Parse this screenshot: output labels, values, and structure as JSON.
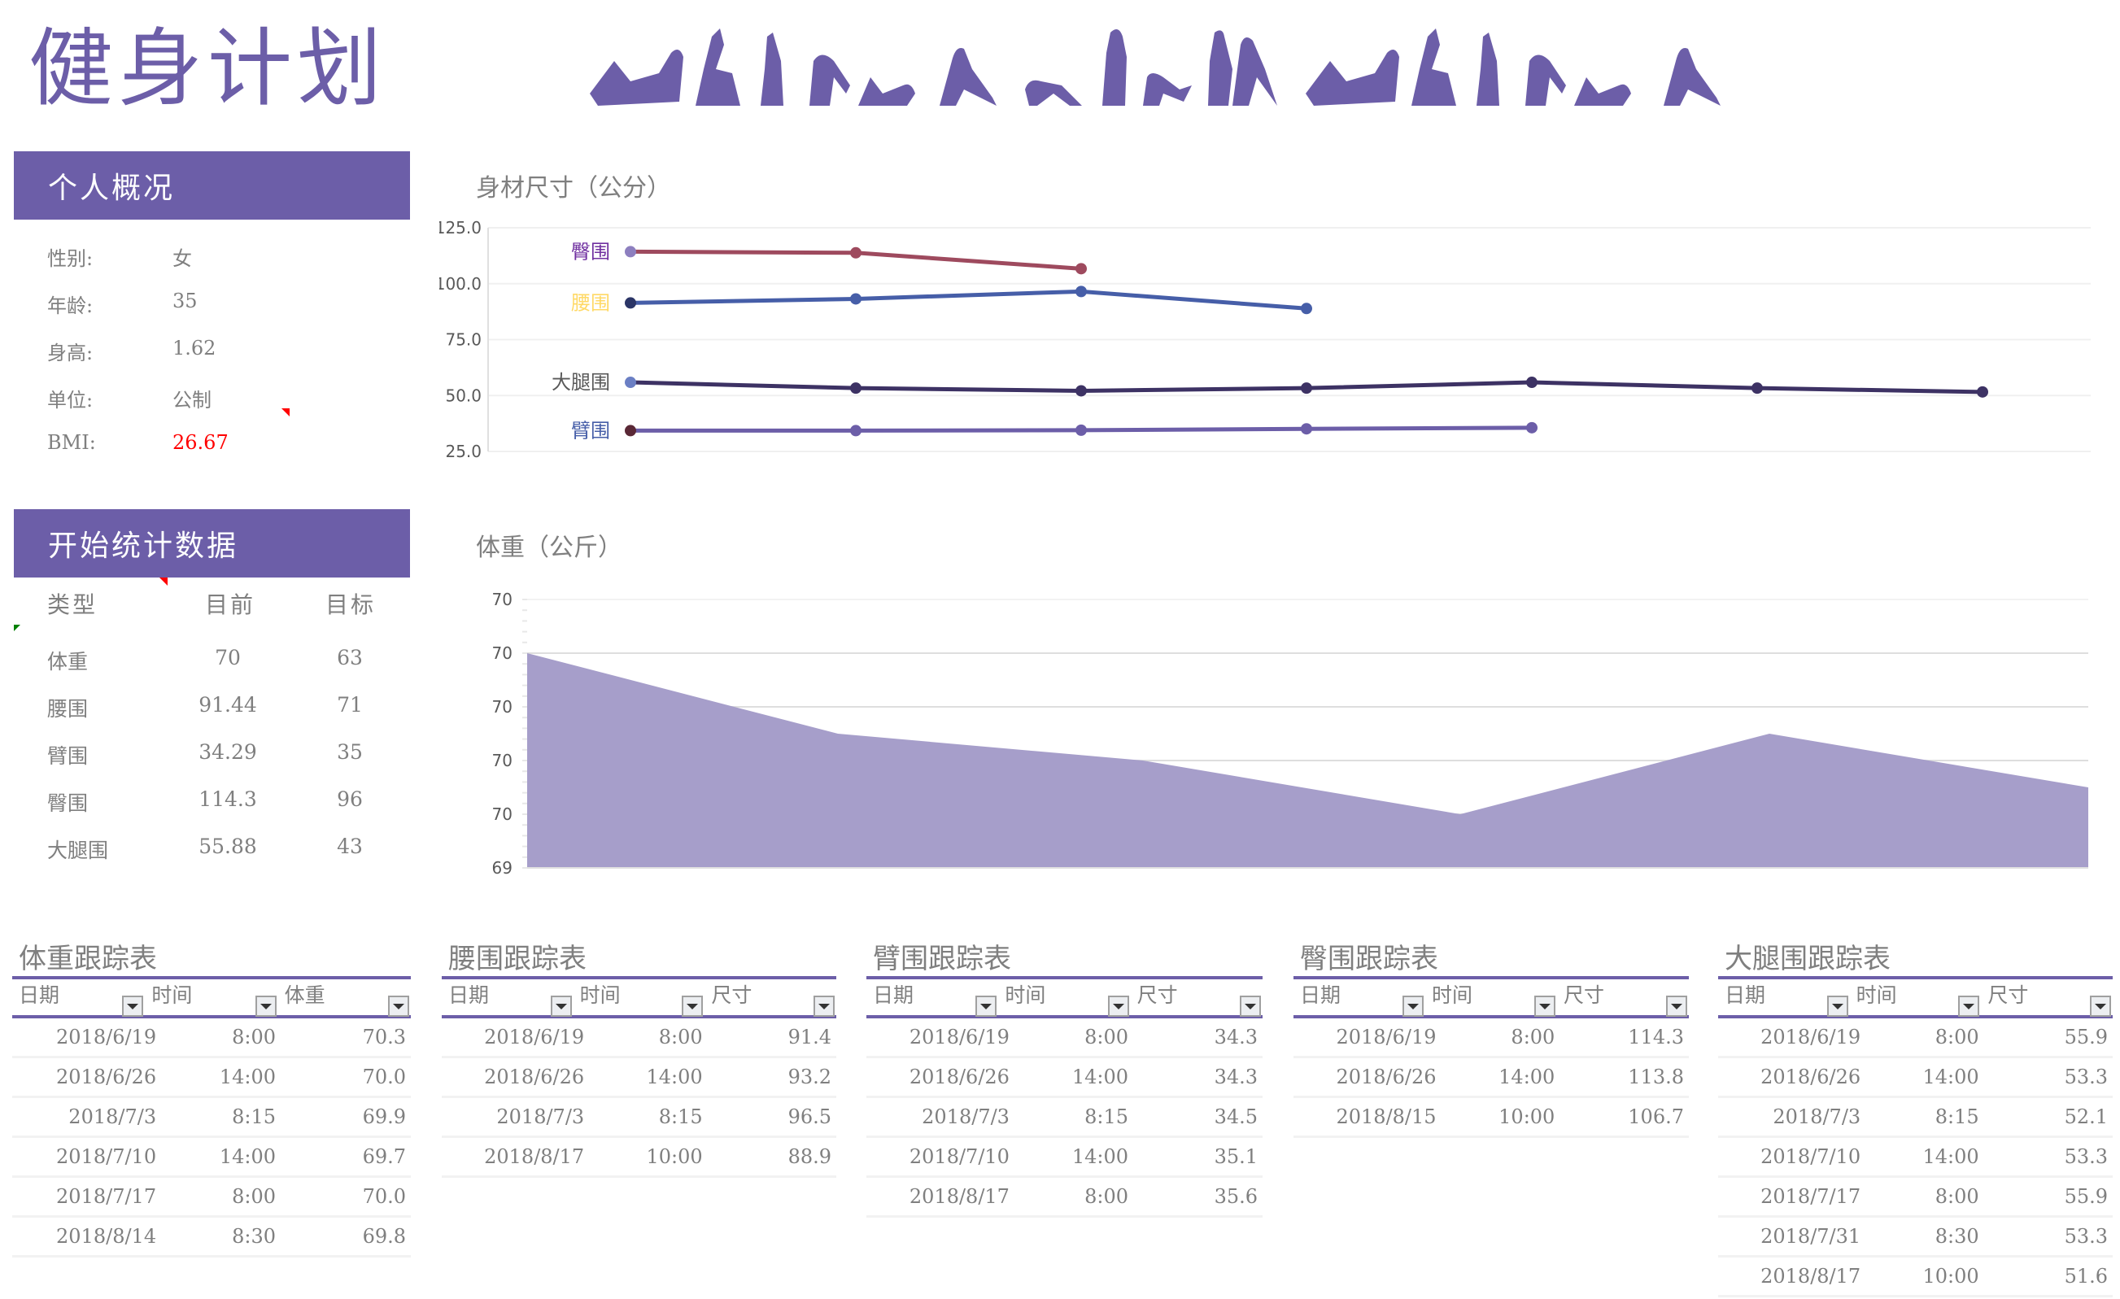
{
  "header": {
    "title": "健身计划",
    "banner_icon": "exercise-silhouettes-banner"
  },
  "profile": {
    "section_title": "个人概况",
    "rows": [
      {
        "label": "性别:",
        "value": "女"
      },
      {
        "label": "年龄:",
        "value": "35"
      },
      {
        "label": "身高:",
        "value": "1.62"
      },
      {
        "label": "单位:",
        "value": "公制"
      },
      {
        "label": "BMI:",
        "value": "26.67"
      }
    ],
    "bmi_color": "#ff0000"
  },
  "stats": {
    "section_title": "开始统计数据",
    "columns": [
      "类型",
      "目前",
      "目标"
    ],
    "rows": [
      {
        "type": "体重",
        "current": "70",
        "target": "63"
      },
      {
        "type": "腰围",
        "current": "91.44",
        "target": "71"
      },
      {
        "type": "臂围",
        "current": "34.29",
        "target": "35"
      },
      {
        "type": "臀围",
        "current": "114.3",
        "target": "96"
      },
      {
        "type": "大腿围",
        "current": "55.88",
        "target": "43"
      }
    ]
  },
  "colors": {
    "accent": "#6c5ea8",
    "area_fill": "#a69eca",
    "hip_line": "#9e4a5e",
    "waist_line": "#465ea8",
    "thigh_line": "#3d3264",
    "arm_line": "#6c5ea8"
  },
  "chart_data": [
    {
      "type": "line",
      "title": "身材尺寸（公分）",
      "ylim": [
        25,
        125
      ],
      "yticks": [
        "125.0",
        "100.0",
        "75.0",
        "50.0",
        "25.0"
      ],
      "grid": true,
      "legend_position": "inline-left",
      "x": [
        1,
        2,
        3,
        4,
        5,
        6,
        7
      ],
      "series": [
        {
          "name": "臀围",
          "label_color": "#7030a0",
          "color": "#9e4a5e",
          "values": [
            114.3,
            113.8,
            106.7
          ]
        },
        {
          "name": "腰围",
          "label_color": "#ffd966",
          "color": "#465ea8",
          "values": [
            91.4,
            93.2,
            96.5,
            88.9
          ]
        },
        {
          "name": "大腿围",
          "label_color": "#595959",
          "color": "#3d3264",
          "values": [
            55.9,
            53.3,
            52.1,
            53.3,
            55.9,
            53.3,
            51.6
          ]
        },
        {
          "name": "臂围",
          "label_color": "#465ea8",
          "color": "#6c5ea8",
          "values": [
            34.3,
            34.3,
            34.5,
            35.1,
            35.6
          ]
        }
      ]
    },
    {
      "type": "area",
      "title": "体重（公斤）",
      "yticks": [
        "70",
        "70",
        "70",
        "70",
        "70",
        "69"
      ],
      "ylim": [
        69.5,
        70.5
      ],
      "grid": true,
      "x": [
        1,
        2,
        3,
        4,
        5,
        6
      ],
      "series": [
        {
          "name": "体重",
          "color": "#a69eca",
          "values": [
            70.3,
            70.0,
            69.9,
            69.7,
            70.0,
            69.8
          ]
        }
      ]
    }
  ],
  "trackers": [
    {
      "title": "体重跟踪表",
      "columns": [
        "日期",
        "时间",
        "体重"
      ],
      "rows": [
        [
          "2018/6/19",
          "8:00",
          "70.3"
        ],
        [
          "2018/6/26",
          "14:00",
          "70.0"
        ],
        [
          "2018/7/3",
          "8:15",
          "69.9"
        ],
        [
          "2018/7/10",
          "14:00",
          "69.7"
        ],
        [
          "2018/7/17",
          "8:00",
          "70.0"
        ],
        [
          "2018/8/14",
          "8:30",
          "69.8"
        ]
      ]
    },
    {
      "title": "腰围跟踪表",
      "columns": [
        "日期",
        "时间",
        "尺寸"
      ],
      "rows": [
        [
          "2018/6/19",
          "8:00",
          "91.4"
        ],
        [
          "2018/6/26",
          "14:00",
          "93.2"
        ],
        [
          "2018/7/3",
          "8:15",
          "96.5"
        ],
        [
          "2018/8/17",
          "10:00",
          "88.9"
        ]
      ]
    },
    {
      "title": "臂围跟踪表",
      "columns": [
        "日期",
        "时间",
        "尺寸"
      ],
      "rows": [
        [
          "2018/6/19",
          "8:00",
          "34.3"
        ],
        [
          "2018/6/26",
          "14:00",
          "34.3"
        ],
        [
          "2018/7/3",
          "8:15",
          "34.5"
        ],
        [
          "2018/7/10",
          "14:00",
          "35.1"
        ],
        [
          "2018/8/17",
          "8:00",
          "35.6"
        ]
      ]
    },
    {
      "title": "臀围跟踪表",
      "columns": [
        "日期",
        "时间",
        "尺寸"
      ],
      "rows": [
        [
          "2018/6/19",
          "8:00",
          "114.3"
        ],
        [
          "2018/6/26",
          "14:00",
          "113.8"
        ],
        [
          "2018/8/15",
          "10:00",
          "106.7"
        ]
      ]
    },
    {
      "title": "大腿围跟踪表",
      "columns": [
        "日期",
        "时间",
        "尺寸"
      ],
      "rows": [
        [
          "2018/6/19",
          "8:00",
          "55.9"
        ],
        [
          "2018/6/26",
          "14:00",
          "53.3"
        ],
        [
          "2018/7/3",
          "8:15",
          "52.1"
        ],
        [
          "2018/7/10",
          "14:00",
          "53.3"
        ],
        [
          "2018/7/17",
          "8:00",
          "55.9"
        ],
        [
          "2018/7/31",
          "8:30",
          "53.3"
        ],
        [
          "2018/8/17",
          "10:00",
          "51.6"
        ]
      ]
    }
  ]
}
